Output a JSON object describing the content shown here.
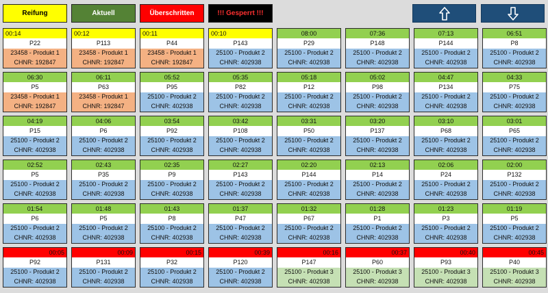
{
  "legend": {
    "reifung": "Reifung",
    "aktuell": "Aktuell",
    "ueberschritten": "Überschritten",
    "gesperrt": "!!! Gesperrt !!!"
  },
  "nav": {
    "up_icon": "arrow-up-icon",
    "down_icon": "arrow-down-icon"
  },
  "colors": {
    "reifung": "#ffff00",
    "aktuell": "#548235",
    "ueberschritten": "#ff0000",
    "gesperrt": "#000000",
    "nav": "#1f4e79",
    "status_green": "#92d050",
    "product_orange": "#f4b183",
    "product_blue": "#9dc3e6",
    "product_lightgreen": "#c5e0b4"
  },
  "cards": [
    {
      "time": "00:14",
      "place": "P22",
      "product": "23458 - Produkt 1",
      "chnr": "CHNR: 192847",
      "status": "yellow",
      "product_color": "orange",
      "align": "left"
    },
    {
      "time": "00:12",
      "place": "P113",
      "product": "23458 - Produkt 1",
      "chnr": "CHNR: 192847",
      "status": "yellow",
      "product_color": "orange",
      "align": "left"
    },
    {
      "time": "00:11",
      "place": "P44",
      "product": "23458 - Produkt 1",
      "chnr": "CHNR: 192847",
      "status": "yellow",
      "product_color": "orange",
      "align": "left"
    },
    {
      "time": "00:10",
      "place": "P143",
      "product": "25100 - Produkt 2",
      "chnr": "CHNR: 402938",
      "status": "yellow",
      "product_color": "blue",
      "align": "left"
    },
    {
      "time": "08:00",
      "place": "P29",
      "product": "25100 - Produkt 2",
      "chnr": "CHNR: 402938",
      "status": "green",
      "product_color": "blue",
      "align": "center"
    },
    {
      "time": "07:36",
      "place": "P148",
      "product": "25100 - Produkt 2",
      "chnr": "CHNR: 402938",
      "status": "green",
      "product_color": "blue",
      "align": "center"
    },
    {
      "time": "07:13",
      "place": "P144",
      "product": "25100 - Produkt 2",
      "chnr": "CHNR: 402938",
      "status": "green",
      "product_color": "blue",
      "align": "center"
    },
    {
      "time": "06:51",
      "place": "P8",
      "product": "25100 - Produkt 2",
      "chnr": "CHNR: 402938",
      "status": "green",
      "product_color": "blue",
      "align": "center"
    },
    {
      "time": "06:30",
      "place": "P5",
      "product": "23458 - Produkt 1",
      "chnr": "CHNR: 192847",
      "status": "green",
      "product_color": "orange",
      "align": "center"
    },
    {
      "time": "06:11",
      "place": "P63",
      "product": "23458 - Produkt 1",
      "chnr": "CHNR: 192847",
      "status": "green",
      "product_color": "orange",
      "align": "center"
    },
    {
      "time": "05:52",
      "place": "P95",
      "product": "25100 - Produkt 2",
      "chnr": "CHNR: 402938",
      "status": "green",
      "product_color": "blue",
      "align": "center"
    },
    {
      "time": "05:35",
      "place": "P82",
      "product": "25100 - Produkt 2",
      "chnr": "CHNR: 402938",
      "status": "green",
      "product_color": "blue",
      "align": "center"
    },
    {
      "time": "05:18",
      "place": "P12",
      "product": "25100 - Produkt 2",
      "chnr": "CHNR: 402938",
      "status": "green",
      "product_color": "blue",
      "align": "center"
    },
    {
      "time": "05:02",
      "place": "P98",
      "product": "25100 - Produkt 2",
      "chnr": "CHNR: 402938",
      "status": "green",
      "product_color": "blue",
      "align": "center"
    },
    {
      "time": "04:47",
      "place": "P134",
      "product": "25100 - Produkt 2",
      "chnr": "CHNR: 402938",
      "status": "green",
      "product_color": "blue",
      "align": "center"
    },
    {
      "time": "04:33",
      "place": "P75",
      "product": "25100 - Produkt 2",
      "chnr": "CHNR: 402938",
      "status": "green",
      "product_color": "blue",
      "align": "center"
    },
    {
      "time": "04:19",
      "place": "P15",
      "product": "25100 - Produkt 2",
      "chnr": "CHNR: 402938",
      "status": "green",
      "product_color": "blue",
      "align": "center"
    },
    {
      "time": "04:06",
      "place": "P6",
      "product": "25100 - Produkt 2",
      "chnr": "CHNR: 402938",
      "status": "green",
      "product_color": "blue",
      "align": "center"
    },
    {
      "time": "03:54",
      "place": "P92",
      "product": "25100 - Produkt 2",
      "chnr": "CHNR: 402938",
      "status": "green",
      "product_color": "blue",
      "align": "center"
    },
    {
      "time": "03:42",
      "place": "P108",
      "product": "25100 - Produkt 2",
      "chnr": "CHNR: 402938",
      "status": "green",
      "product_color": "blue",
      "align": "center"
    },
    {
      "time": "03:31",
      "place": "P50",
      "product": "25100 - Produkt 2",
      "chnr": "CHNR: 402938",
      "status": "green",
      "product_color": "blue",
      "align": "center"
    },
    {
      "time": "03:20",
      "place": "P137",
      "product": "25100 - Produkt 2",
      "chnr": "CHNR: 402938",
      "status": "green",
      "product_color": "blue",
      "align": "center"
    },
    {
      "time": "03:10",
      "place": "P68",
      "product": "25100 - Produkt 2",
      "chnr": "CHNR: 402938",
      "status": "green",
      "product_color": "blue",
      "align": "center"
    },
    {
      "time": "03:01",
      "place": "P65",
      "product": "25100 - Produkt 2",
      "chnr": "CHNR: 402938",
      "status": "green",
      "product_color": "blue",
      "align": "center"
    },
    {
      "time": "02:52",
      "place": "P5",
      "product": "25100 - Produkt 2",
      "chnr": "CHNR: 402938",
      "status": "green",
      "product_color": "blue",
      "align": "center"
    },
    {
      "time": "02:43",
      "place": "P35",
      "product": "25100 - Produkt 2",
      "chnr": "CHNR: 402938",
      "status": "green",
      "product_color": "blue",
      "align": "center"
    },
    {
      "time": "02:35",
      "place": "P9",
      "product": "25100 - Produkt 2",
      "chnr": "CHNR: 402938",
      "status": "green",
      "product_color": "blue",
      "align": "center"
    },
    {
      "time": "02:27",
      "place": "P143",
      "product": "25100 - Produkt 2",
      "chnr": "CHNR: 402938",
      "status": "green",
      "product_color": "blue",
      "align": "center"
    },
    {
      "time": "02:20",
      "place": "P144",
      "product": "25100 - Produkt 2",
      "chnr": "CHNR: 402938",
      "status": "green",
      "product_color": "blue",
      "align": "center"
    },
    {
      "time": "02:13",
      "place": "P14",
      "product": "25100 - Produkt 2",
      "chnr": "CHNR: 402938",
      "status": "green",
      "product_color": "blue",
      "align": "center"
    },
    {
      "time": "02:06",
      "place": "P24",
      "product": "25100 - Produkt 2",
      "chnr": "CHNR: 402938",
      "status": "green",
      "product_color": "blue",
      "align": "center"
    },
    {
      "time": "02:00",
      "place": "P132",
      "product": "25100 - Produkt 2",
      "chnr": "CHNR: 402938",
      "status": "green",
      "product_color": "blue",
      "align": "center"
    },
    {
      "time": "01:54",
      "place": "P6",
      "product": "25100 - Produkt 2",
      "chnr": "CHNR: 402938",
      "status": "green",
      "product_color": "blue",
      "align": "center"
    },
    {
      "time": "01:48",
      "place": "P5",
      "product": "25100 - Produkt 2",
      "chnr": "CHNR: 402938",
      "status": "green",
      "product_color": "blue",
      "align": "center"
    },
    {
      "time": "01:43",
      "place": "P8",
      "product": "25100 - Produkt 2",
      "chnr": "CHNR: 402938",
      "status": "green",
      "product_color": "blue",
      "align": "center"
    },
    {
      "time": "01:37",
      "place": "P47",
      "product": "25100 - Produkt 2",
      "chnr": "CHNR: 402938",
      "status": "green",
      "product_color": "blue",
      "align": "center"
    },
    {
      "time": "01:32",
      "place": "P67",
      "product": "25100 - Produkt 2",
      "chnr": "CHNR: 402938",
      "status": "green",
      "product_color": "blue",
      "align": "center"
    },
    {
      "time": "01:28",
      "place": "P1",
      "product": "25100 - Produkt 2",
      "chnr": "CHNR: 402938",
      "status": "green",
      "product_color": "blue",
      "align": "center"
    },
    {
      "time": "01:23",
      "place": "P3",
      "product": "25100 - Produkt 2",
      "chnr": "CHNR: 402938",
      "status": "green",
      "product_color": "blue",
      "align": "center"
    },
    {
      "time": "01:19",
      "place": "P5",
      "product": "25100 - Produkt 2",
      "chnr": "CHNR: 402938",
      "status": "green",
      "product_color": "blue",
      "align": "center"
    },
    {
      "time": "00:05",
      "place": "P92",
      "product": "25100 - Produkt 2",
      "chnr": "CHNR: 402938",
      "status": "red",
      "product_color": "blue",
      "align": "right"
    },
    {
      "time": "00:09",
      "place": "P131",
      "product": "25100 - Produkt 2",
      "chnr": "CHNR: 402938",
      "status": "red",
      "product_color": "blue",
      "align": "right"
    },
    {
      "time": "00:15",
      "place": "P32",
      "product": "25100 - Produkt 2",
      "chnr": "CHNR: 402938",
      "status": "red",
      "product_color": "blue",
      "align": "right"
    },
    {
      "time": "00:39",
      "place": "P120",
      "product": "25100 - Produkt 2",
      "chnr": "CHNR: 402938",
      "status": "red",
      "product_color": "blue",
      "align": "right"
    },
    {
      "time": "00:16",
      "place": "P147",
      "product": "25100 - Produkt 3",
      "chnr": "CHNR: 402938",
      "status": "red",
      "product_color": "lightgreen",
      "align": "right"
    },
    {
      "time": "00:37",
      "place": "P60",
      "product": "25100 - Produkt 3",
      "chnr": "CHNR: 402938",
      "status": "red",
      "product_color": "lightgreen",
      "align": "right"
    },
    {
      "time": "00:40",
      "place": "P93",
      "product": "25100 - Produkt 3",
      "chnr": "CHNR: 402938",
      "status": "red",
      "product_color": "lightgreen",
      "align": "right"
    },
    {
      "time": "00:45",
      "place": "P40",
      "product": "25100 - Produkt 3",
      "chnr": "CHNR: 402938",
      "status": "red",
      "product_color": "lightgreen",
      "align": "right"
    }
  ]
}
